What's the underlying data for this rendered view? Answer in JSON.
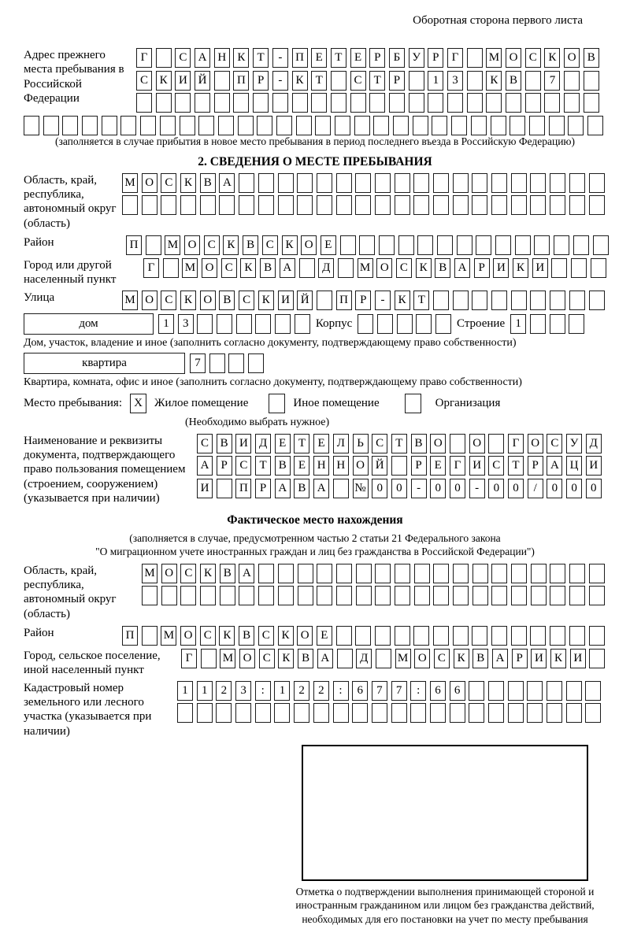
{
  "page_note": "Оборотная сторона первого листа",
  "prev_address": {
    "label": "Адрес прежнего места пребывания в Российской Федерации",
    "rows": [
      {
        "t": "Г САНКТ-ПЕТЕРБУРГ МОСКОВ",
        "n": 24
      },
      {
        "t": "СКИЙ ПР-КТ СТР 13 КВ 7",
        "n": 24
      },
      {
        "t": "",
        "n": 24
      }
    ],
    "row_full": {
      "t": "",
      "n": 30
    },
    "caption": "(заполняется в случае прибытия в новое место пребывания в период последнего въезда в Российскую Федерацию)"
  },
  "section2": {
    "title": "2. СВЕДЕНИЯ О МЕСТЕ ПРЕБЫВАНИЯ",
    "region": {
      "label": "Область, край, республика, автономный округ (область)",
      "rows": [
        {
          "t": "МОСКВА",
          "n": 25
        },
        {
          "t": "",
          "n": 25
        }
      ]
    },
    "district": {
      "label": "Район",
      "cells": {
        "t": "П МОСКВСКОЕ",
        "n": 25
      }
    },
    "city": {
      "label": "Город или другой населенный пункт",
      "cells": {
        "t": "Г МОСКВА Д МОСКВАРИКИ",
        "n": 24
      }
    },
    "street": {
      "label": "Улица",
      "cells": {
        "t": "МОСКОВСКИЙ ПР-КТ",
        "n": 25
      }
    },
    "house": {
      "house_label": "дом",
      "house_cells": {
        "t": "13",
        "n": 8
      },
      "korpus_label": "Корпус",
      "korpus_cells": {
        "t": "",
        "n": 5
      },
      "stroenie_label": "Строение",
      "stroenie_cells": {
        "t": "1",
        "n": 4
      }
    },
    "house_caption": "Дом, участок, владение и иное (заполнить согласно документу, подтверждающему право собственности)",
    "apartment": {
      "label": "квартира",
      "cells": {
        "t": "7",
        "n": 4
      }
    },
    "apartment_caption": "Квартира, комната, офис и иное (заполнить согласно документу, подтверждающему право собственности)",
    "stay_type": {
      "label": "Место пребывания:",
      "options": [
        {
          "label": "Жилое помещение",
          "mark": "X"
        },
        {
          "label": "Иное помещение",
          "mark": ""
        },
        {
          "label": "Организация",
          "mark": ""
        }
      ],
      "hint": "(Необходимо выбрать нужное)"
    },
    "doc": {
      "label": "Наименование и реквизиты документа, подтверждающего право пользования помещением (строением, сооружением) (указывается при наличии)",
      "rows": [
        {
          "t": "СВИДЕТЕЛЬСТВО О ГОСУД",
          "n": 21
        },
        {
          "t": "АРСТВЕННОЙ РЕГИСТРАЦИ",
          "n": 21
        },
        {
          "t": "И ПРАВА №00-00-00/000",
          "n": 21
        }
      ]
    }
  },
  "actual_location": {
    "title": "Фактическое место нахождения",
    "caption_line1": "(заполняется в случае, предусмотренном частью 2 статьи 21 Федерального закона",
    "caption_line2": "\"О миграционном учете иностранных граждан и лиц без гражданства в Российской Федерации\")",
    "region": {
      "label": "Область, край, республика, автономный округ (область)",
      "rows": [
        {
          "t": "МОСКВА",
          "n": 24
        },
        {
          "t": "",
          "n": 24
        }
      ]
    },
    "district": {
      "label": "Район",
      "cells": {
        "t": "П МОСКВСКОЕ",
        "n": 25
      }
    },
    "city": {
      "label": "Город, сельское поселение, иной населенный пункт",
      "cells": {
        "t": "Г МОСКВА Д МОСКВАРИКИ",
        "n": 22
      }
    },
    "cadastral": {
      "label": "Кадастровый номер земельного или лесного участка (указывается при наличии)",
      "rows": [
        {
          "t": "1123:122:677:66",
          "n": 22
        },
        {
          "t": "",
          "n": 22
        }
      ]
    }
  },
  "stamp": {
    "caption": "Отметка о подтверждении выполнения принимающей стороной и иностранным гражданином или лицом без гражданства действий, необходимых для его постановки на учет по месту пребывания"
  }
}
